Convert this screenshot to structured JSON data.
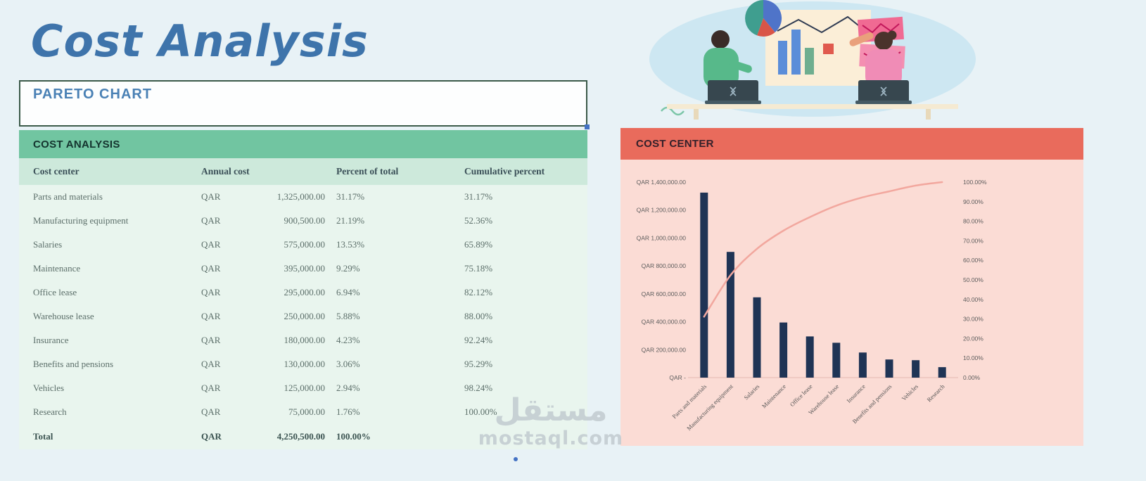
{
  "page": {
    "title": "Cost Analysis",
    "subtitle_box": "PARETO CHART"
  },
  "watermark": {
    "arabic": "مستقل",
    "latin": "mostaql.com"
  },
  "table": {
    "header_bar": "COST ANALYSIS",
    "columns": [
      "Cost center",
      "Annual cost",
      "Percent of total",
      "Cumulative percent"
    ],
    "rows": [
      {
        "name": "Parts and materials",
        "currency": "QAR",
        "amount": "1,325,000.00",
        "percent": "31.17%",
        "cumulative": "31.17%"
      },
      {
        "name": "Manufacturing equipment",
        "currency": "QAR",
        "amount": "900,500.00",
        "percent": "21.19%",
        "cumulative": "52.36%"
      },
      {
        "name": "Salaries",
        "currency": "QAR",
        "amount": "575,000.00",
        "percent": "13.53%",
        "cumulative": "65.89%"
      },
      {
        "name": "Maintenance",
        "currency": "QAR",
        "amount": "395,000.00",
        "percent": "9.29%",
        "cumulative": "75.18%"
      },
      {
        "name": "Office lease",
        "currency": "QAR",
        "amount": "295,000.00",
        "percent": "6.94%",
        "cumulative": "82.12%"
      },
      {
        "name": "Warehouse lease",
        "currency": "QAR",
        "amount": "250,000.00",
        "percent": "5.88%",
        "cumulative": "88.00%"
      },
      {
        "name": "Insurance",
        "currency": "QAR",
        "amount": "180,000.00",
        "percent": "4.23%",
        "cumulative": "92.24%"
      },
      {
        "name": "Benefits and pensions",
        "currency": "QAR",
        "amount": "130,000.00",
        "percent": "3.06%",
        "cumulative": "95.29%"
      },
      {
        "name": "Vehicles",
        "currency": "QAR",
        "amount": "125,000.00",
        "percent": "2.94%",
        "cumulative": "98.24%"
      },
      {
        "name": "Research",
        "currency": "QAR",
        "amount": "75,000.00",
        "percent": "1.76%",
        "cumulative": "100.00%"
      }
    ],
    "total": {
      "label": "Total",
      "currency": "QAR",
      "amount": "4,250,500.00",
      "percent": "100.00%",
      "cumulative": ""
    }
  },
  "chart": {
    "header": "COST CENTER"
  },
  "chart_data": {
    "type": "bar",
    "title": "COST CENTER",
    "categories": [
      "Parts and materials",
      "Manufacturing equipment",
      "Salaries",
      "Maintenance",
      "Office lease",
      "Warehouse lease",
      "Insurance",
      "Benefits and pensions",
      "Vehicles",
      "Research"
    ],
    "series": [
      {
        "name": "Annual cost (QAR)",
        "type": "bar",
        "values": [
          1325000,
          900500,
          575000,
          395000,
          295000,
          250000,
          180000,
          130000,
          125000,
          75000
        ]
      },
      {
        "name": "Cumulative percent",
        "type": "line",
        "values": [
          31.17,
          52.36,
          65.89,
          75.18,
          82.12,
          88.0,
          92.24,
          95.29,
          98.24,
          100.0
        ]
      }
    ],
    "left_axis": {
      "min": 0,
      "max": 1400000,
      "step": 200000,
      "tick_labels": [
        "QAR -",
        "QAR 200,000.00",
        "QAR 400,000.00",
        "QAR 600,000.00",
        "QAR 800,000.00",
        "QAR 1,000,000.00",
        "QAR 1,200,000.00",
        "QAR 1,400,000.00"
      ]
    },
    "right_axis": {
      "min": 0,
      "max": 100,
      "step": 10,
      "tick_labels": [
        "0.00%",
        "10.00%",
        "20.00%",
        "30.00%",
        "40.00%",
        "50.00%",
        "60.00%",
        "70.00%",
        "80.00%",
        "90.00%",
        "100.00%"
      ]
    },
    "legend": "none",
    "grid": false,
    "colors": {
      "bar": "#1f3455",
      "line": "#f2a79e",
      "panel": "#fbdcd5",
      "header": "#e96b5c"
    }
  }
}
